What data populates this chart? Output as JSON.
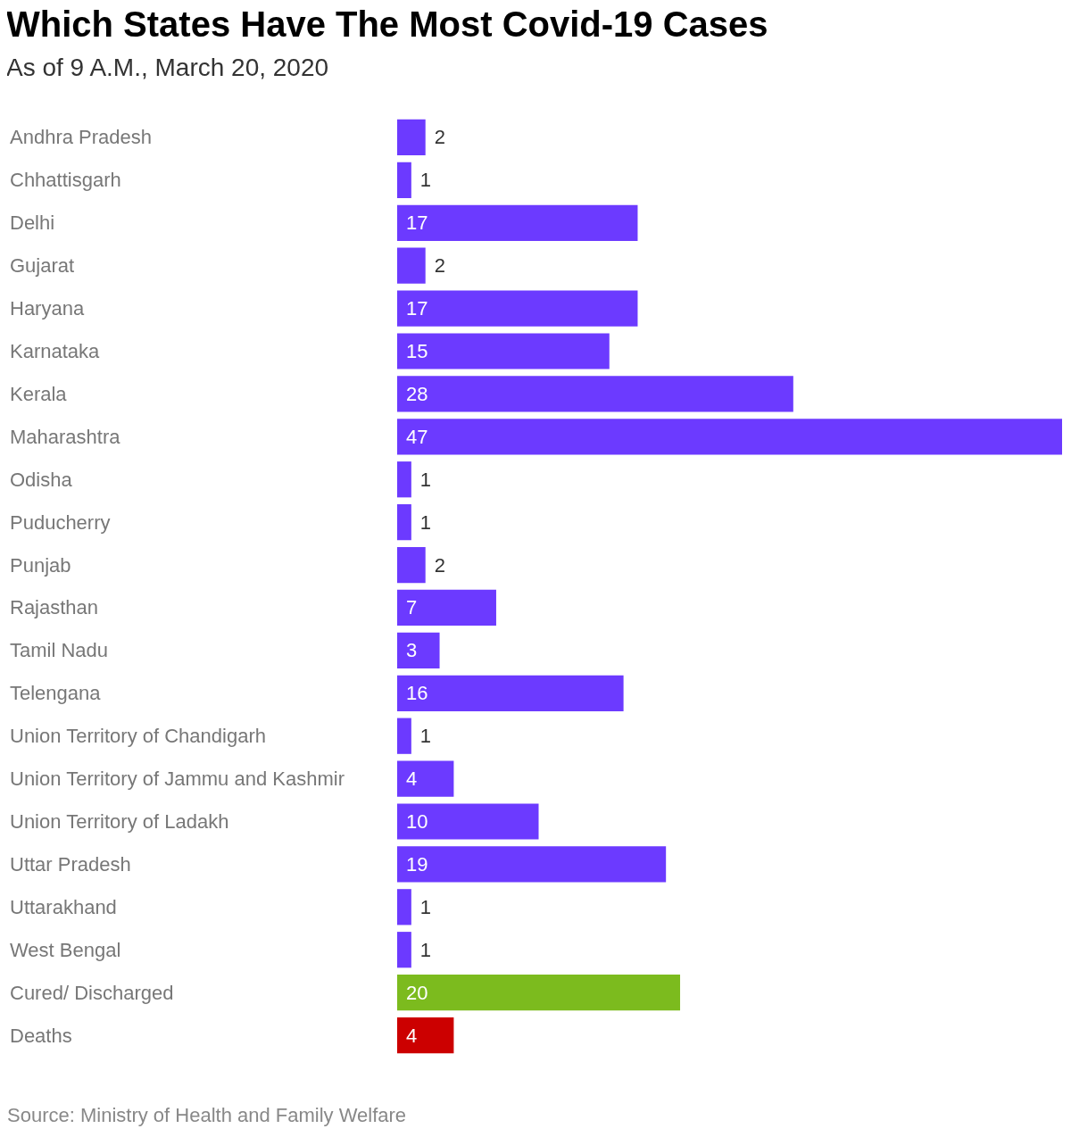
{
  "chart_data": {
    "type": "bar",
    "orientation": "horizontal",
    "title": "Which States Have The Most Covid-19 Cases",
    "subtitle": "As of 9 A.M., March 20, 2020",
    "categories": [
      "Andhra Pradesh",
      "Chhattisgarh",
      "Delhi",
      "Gujarat",
      "Haryana",
      "Karnataka",
      "Kerala",
      "Maharashtra",
      "Odisha",
      "Puducherry",
      "Punjab",
      "Rajasthan",
      "Tamil Nadu",
      "Telengana",
      "Union Territory of Chandigarh",
      "Union Territory of Jammu and Kashmir",
      "Union Territory of Ladakh",
      "Uttar Pradesh",
      "Uttarakhand",
      "West Bengal",
      "Cured/ Discharged",
      "Deaths"
    ],
    "values": [
      2,
      1,
      17,
      2,
      17,
      15,
      28,
      47,
      1,
      1,
      2,
      7,
      3,
      16,
      1,
      4,
      10,
      19,
      1,
      1,
      20,
      4
    ],
    "colors": [
      "#6c3aff",
      "#6c3aff",
      "#6c3aff",
      "#6c3aff",
      "#6c3aff",
      "#6c3aff",
      "#6c3aff",
      "#6c3aff",
      "#6c3aff",
      "#6c3aff",
      "#6c3aff",
      "#6c3aff",
      "#6c3aff",
      "#6c3aff",
      "#6c3aff",
      "#6c3aff",
      "#6c3aff",
      "#6c3aff",
      "#6c3aff",
      "#6c3aff",
      "#7cbb1e",
      "#cc0000"
    ],
    "data_labels": true,
    "annotations": [
      "Source: Ministry of Health and Family Welfare"
    ]
  }
}
